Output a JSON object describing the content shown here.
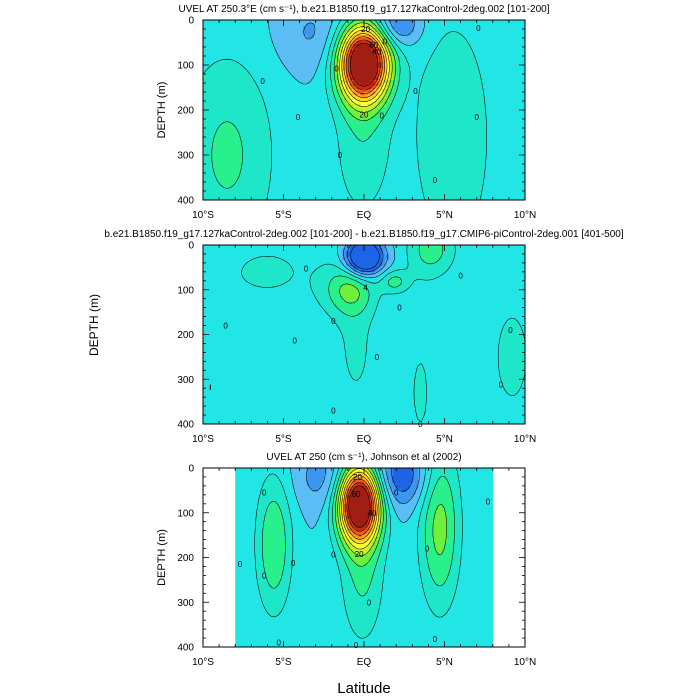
{
  "figure": {
    "shared_xlabel": "Latitude",
    "shared_ylabel": "DEPTH (m)"
  },
  "palette": [
    "#1e64e6",
    "#3c96f0",
    "#5abef5",
    "#22e6e6",
    "#1ee6c8",
    "#28f08c",
    "#6ef03c",
    "#c8f028",
    "#ffff32",
    "#ffd228",
    "#ff9628",
    "#f05a1e",
    "#cd2814",
    "#a01e14"
  ],
  "chart_data": [
    {
      "type": "contour",
      "title": "UVEL AT 250.3°E (cm s⁻¹), b.e21.B1850.f19_g17.127kaControl-2deg.002 [101-200]",
      "ylabel": "DEPTH (m)",
      "xlabel": "",
      "x_ticks": [
        "10°S",
        "5°S",
        "EQ",
        "5°N",
        "10°N"
      ],
      "x_tick_values": [
        -10,
        -5,
        0,
        5,
        10
      ],
      "y_ticks": [
        "0",
        "100",
        "200",
        "300",
        "400"
      ],
      "y_tick_values": [
        0,
        100,
        200,
        300,
        400
      ],
      "xlim": [
        -10,
        10
      ],
      "ylim": [
        0,
        400
      ],
      "level_step": 10,
      "data_extent": [
        -10,
        10
      ],
      "features": [
        {
          "lat": 0,
          "depth": 95,
          "amp": 130,
          "wx": 1.1,
          "wz": 60
        },
        {
          "lat": -0.1,
          "depth": 270,
          "amp": 18,
          "wx": 1.3,
          "wz": 130
        },
        {
          "lat": -8.5,
          "depth": 300,
          "amp": 22,
          "wx": 2.2,
          "wz": 170
        },
        {
          "lat": 5.5,
          "depth": 260,
          "amp": 20,
          "wx": 1.8,
          "wz": 200
        },
        {
          "lat": 2.0,
          "depth": 10,
          "amp": -28,
          "wx": 1.0,
          "wz": 35
        },
        {
          "lat": -3.0,
          "depth": 30,
          "amp": -12,
          "wx": 1.7,
          "wz": 60
        }
      ],
      "contour_labels": [
        {
          "lat": 0,
          "depth": 210,
          "text": "20"
        },
        {
          "lat": 0.1,
          "depth": 20,
          "text": "20"
        },
        {
          "lat": 0.6,
          "depth": 55,
          "text": "60"
        },
        {
          "lat": 0.8,
          "depth": 70,
          "text": "40"
        },
        {
          "lat": -6.3,
          "depth": 135,
          "text": "0"
        },
        {
          "lat": -4.1,
          "depth": 215,
          "text": "0"
        },
        {
          "lat": -1.7,
          "depth": 108,
          "text": "0"
        },
        {
          "lat": -1.5,
          "depth": 300,
          "text": "0"
        },
        {
          "lat": 1.1,
          "depth": 212,
          "text": "0"
        },
        {
          "lat": 3.2,
          "depth": 158,
          "text": "0"
        },
        {
          "lat": 4.4,
          "depth": 355,
          "text": "0"
        },
        {
          "lat": 7.1,
          "depth": 18,
          "text": "0"
        },
        {
          "lat": 7.0,
          "depth": 215,
          "text": "0"
        },
        {
          "lat": 1.3,
          "depth": 48,
          "text": "0"
        }
      ]
    },
    {
      "type": "contour",
      "title": "b.e21.B1850.f19_g17.127kaControl-2deg.002 [101-200] - b.e21.B1850.f19_g17.CMIP6-piControl-2deg.001 [401-500]",
      "ylabel": "",
      "xlabel": "",
      "x_ticks": [
        "10°S",
        "5°S",
        "EQ",
        "5°N",
        "10°N"
      ],
      "x_tick_values": [
        -10,
        -5,
        0,
        5,
        10
      ],
      "y_ticks": [
        "0",
        "100",
        "200",
        "300",
        "400"
      ],
      "y_tick_values": [
        0,
        100,
        200,
        300,
        400
      ],
      "xlim": [
        -10,
        10
      ],
      "ylim": [
        0,
        400
      ],
      "level_step": 2,
      "data_extent": [
        -10,
        10
      ],
      "features": [
        {
          "lat": 0,
          "depth": 28,
          "amp": -14,
          "wx": 0.8,
          "wz": 28
        },
        {
          "lat": -0.9,
          "depth": 100,
          "amp": 5.2,
          "wx": 1.1,
          "wz": 40
        },
        {
          "lat": 1.9,
          "depth": 82,
          "amp": 4.3,
          "wx": 0.6,
          "wz": 18
        },
        {
          "lat": 4.2,
          "depth": 10,
          "amp": 4.8,
          "wx": 1.1,
          "wz": 45
        },
        {
          "lat": -0.5,
          "depth": 230,
          "amp": 2.4,
          "wx": 1.0,
          "wz": 120
        },
        {
          "lat": 9.2,
          "depth": 250,
          "amp": 2.6,
          "wx": 1.2,
          "wz": 120
        },
        {
          "lat": -6.0,
          "depth": 60,
          "amp": 2.2,
          "wx": 3.5,
          "wz": 80
        },
        {
          "lat": -9.5,
          "depth": 320,
          "amp": 2.0,
          "wx": 1.0,
          "wz": 110
        },
        {
          "lat": 3.5,
          "depth": 330,
          "amp": 2.2,
          "wx": 0.9,
          "wz": 150
        }
      ],
      "contour_labels": [
        {
          "lat": 0.1,
          "depth": 95,
          "text": "4"
        },
        {
          "lat": -3.6,
          "depth": 53,
          "text": "0"
        },
        {
          "lat": -8.6,
          "depth": 180,
          "text": "0"
        },
        {
          "lat": -4.3,
          "depth": 213,
          "text": "0"
        },
        {
          "lat": -1.9,
          "depth": 170,
          "text": "0"
        },
        {
          "lat": 0.8,
          "depth": 250,
          "text": "0"
        },
        {
          "lat": -1.9,
          "depth": 370,
          "text": "0"
        },
        {
          "lat": 2.2,
          "depth": 140,
          "text": "0"
        },
        {
          "lat": 3.5,
          "depth": 400,
          "text": "0"
        },
        {
          "lat": 6.0,
          "depth": 68,
          "text": "0"
        },
        {
          "lat": 9.1,
          "depth": 190,
          "text": "0"
        },
        {
          "lat": 8.5,
          "depth": 312,
          "text": "0"
        }
      ]
    },
    {
      "type": "contour",
      "title": "UVEL AT 250 (cm s⁻¹), Johnson et al (2002)",
      "ylabel": "DEPTH (m)",
      "xlabel": "Latitude",
      "x_ticks": [
        "10°S",
        "5°S",
        "EQ",
        "5°N",
        "10°N"
      ],
      "x_tick_values": [
        -10,
        -5,
        0,
        5,
        10
      ],
      "y_ticks": [
        "0",
        "100",
        "200",
        "300",
        "400"
      ],
      "y_tick_values": [
        0,
        100,
        200,
        300,
        400
      ],
      "xlim": [
        -10,
        10
      ],
      "ylim": [
        0,
        400
      ],
      "level_step": 10,
      "data_extent": [
        -8,
        8
      ],
      "features": [
        {
          "lat": -0.3,
          "depth": 80,
          "amp": 125,
          "wx": 0.9,
          "wz": 60
        },
        {
          "lat": -0.1,
          "depth": 230,
          "amp": 22,
          "wx": 1.0,
          "wz": 120
        },
        {
          "lat": -5.6,
          "depth": 170,
          "amp": 30,
          "wx": 0.8,
          "wz": 110
        },
        {
          "lat": 4.7,
          "depth": 130,
          "amp": 34,
          "wx": 0.9,
          "wz": 130
        },
        {
          "lat": 2.3,
          "depth": 15,
          "amp": -30,
          "wx": 1.2,
          "wz": 50
        },
        {
          "lat": -2.5,
          "depth": 20,
          "amp": -15,
          "wx": 1.3,
          "wz": 50
        }
      ],
      "contour_labels": [
        {
          "lat": -0.4,
          "depth": 20,
          "text": "20"
        },
        {
          "lat": -0.5,
          "depth": 58,
          "text": "60"
        },
        {
          "lat": 0.5,
          "depth": 100,
          "text": "40"
        },
        {
          "lat": -0.3,
          "depth": 192,
          "text": "20"
        },
        {
          "lat": -6.2,
          "depth": 55,
          "text": "0"
        },
        {
          "lat": -7.7,
          "depth": 215,
          "text": "0"
        },
        {
          "lat": -6.2,
          "depth": 240,
          "text": "0"
        },
        {
          "lat": -4.4,
          "depth": 212,
          "text": "0"
        },
        {
          "lat": -1.9,
          "depth": 193,
          "text": "0"
        },
        {
          "lat": 0.3,
          "depth": 300,
          "text": "0"
        },
        {
          "lat": -5.3,
          "depth": 390,
          "text": "0"
        },
        {
          "lat": -0.5,
          "depth": 395,
          "text": "0"
        },
        {
          "lat": 3.9,
          "depth": 180,
          "text": "0"
        },
        {
          "lat": 7.7,
          "depth": 75,
          "text": "0"
        },
        {
          "lat": 4.4,
          "depth": 382,
          "text": "0"
        },
        {
          "lat": 2.0,
          "depth": 55,
          "text": "0"
        }
      ]
    }
  ]
}
